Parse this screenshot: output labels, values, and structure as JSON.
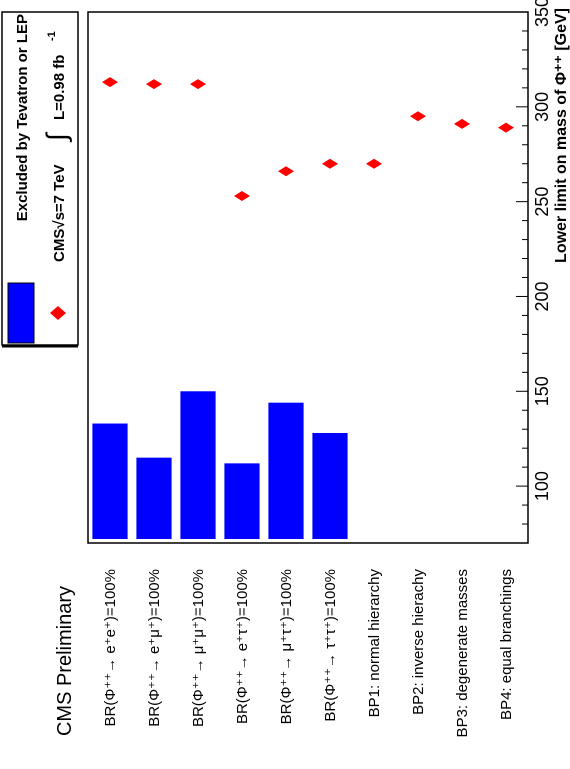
{
  "chart_data": {
    "type": "bar",
    "orientation": "rotated-90",
    "preliminary_label": "CMS Preliminary",
    "axis_label": "Lower limit on mass of Φ⁺⁺ [GeV]",
    "axis_range": [
      70,
      350
    ],
    "axis_ticks": [
      100,
      150,
      200,
      250,
      300,
      350
    ],
    "grid": false,
    "categories": [
      "BR(Φ⁺⁺→ e⁺e⁺)=100%",
      "BR(Φ⁺⁺→ e⁺μ⁺)=100%",
      "BR(Φ⁺⁺→ μ⁺μ⁺)=100%",
      "BR(Φ⁺⁺→ e⁺τ⁺)=100%",
      "BR(Φ⁺⁺→ μ⁺τ⁺)=100%",
      "BR(Φ⁺⁺→ τ⁺τ⁺)=100%",
      "BP1: normal hierarchy",
      "BP2: inverse hierachy",
      "BP3: degenerate masses",
      "BP4: equal branchings"
    ],
    "series": [
      {
        "name": "Excluded by Tevatron or LEP",
        "type": "bar",
        "color": "#0000ff",
        "values": [
          133,
          115,
          150,
          112,
          144,
          128,
          null,
          null,
          null,
          null
        ]
      },
      {
        "name": "CMS √s=7 TeV ∫ L=0.98 fb⁻¹",
        "type": "marker",
        "marker": "diamond",
        "color": "#ff0000",
        "values": [
          313,
          312,
          312,
          253,
          266,
          270,
          270,
          295,
          291,
          289
        ]
      }
    ],
    "legend_position": "top",
    "legend": {
      "excluded_label": "Excluded by Tevatron or LEP",
      "cms_prefix": "CMS√s=7 TeV",
      "cms_lumi": "L=0.98 fb",
      "cms_lumi_exp": "-1"
    }
  }
}
